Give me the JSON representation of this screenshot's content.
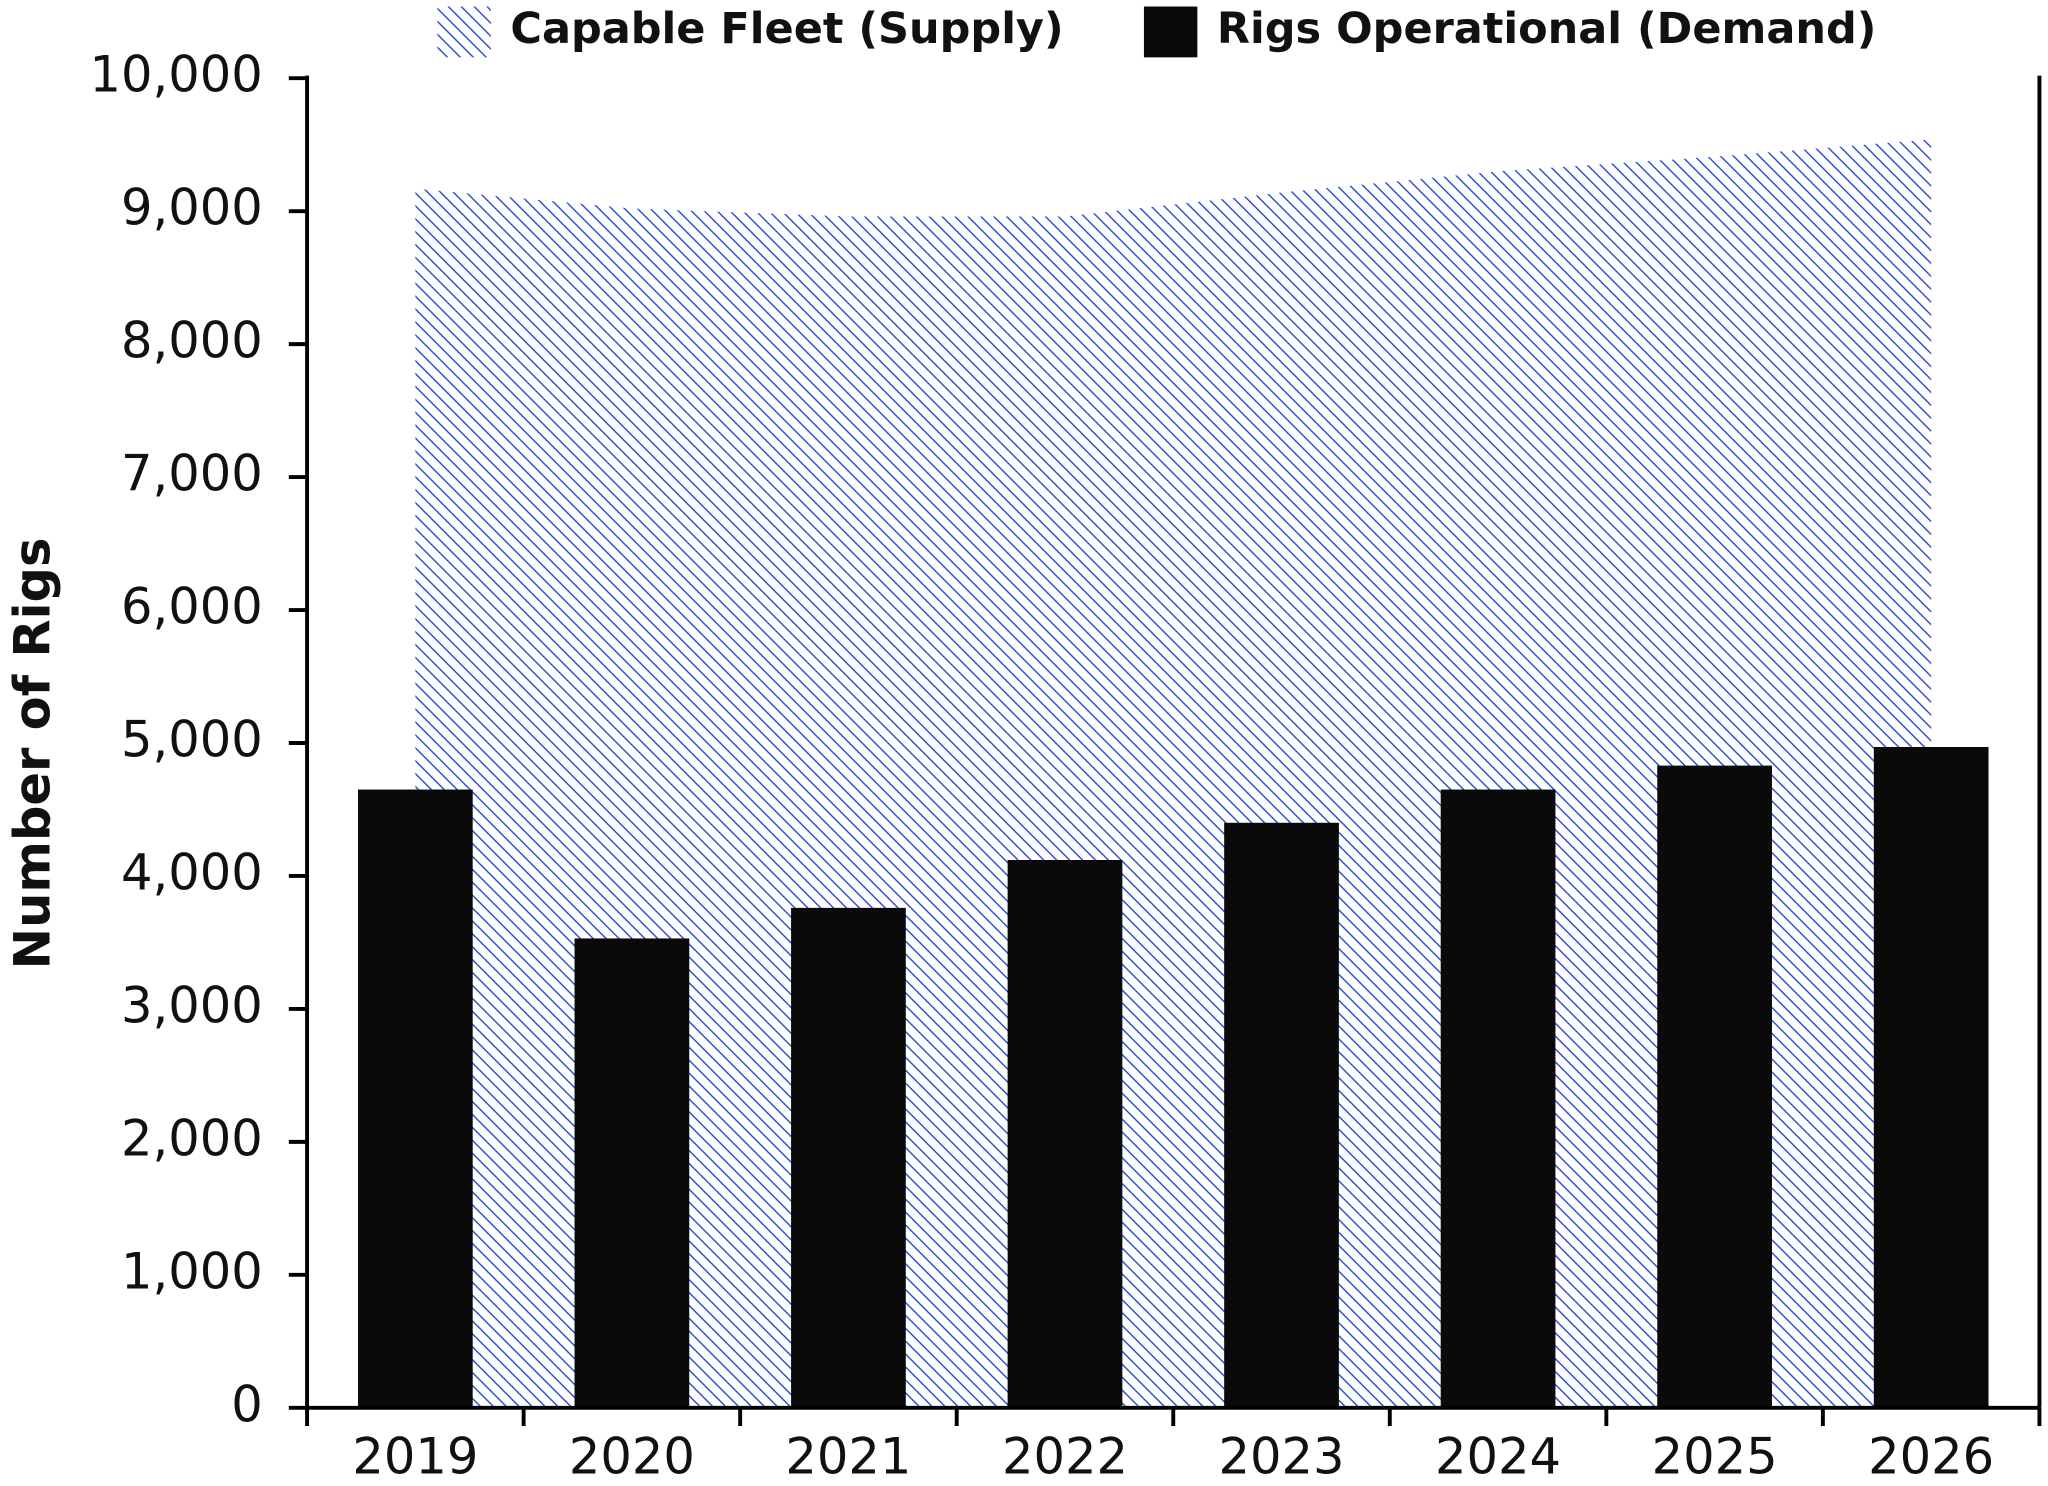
{
  "chart_data": {
    "type": "bar",
    "y_label": "Number of Rigs",
    "categories": [
      "2019",
      "2020",
      "2021",
      "2022",
      "2023",
      "2024",
      "2025",
      "2026"
    ],
    "series": [
      {
        "name": "Capable Fleet (Supply)",
        "type": "area",
        "color": "#2b4fd8",
        "values": [
          9170,
          9020,
          8960,
          8960,
          9140,
          9300,
          9410,
          9540
        ]
      },
      {
        "name": "Rigs Operational (Demand)",
        "type": "bar",
        "color": "#0a0a0a",
        "values": [
          4650,
          3530,
          3760,
          4120,
          4400,
          4650,
          4830,
          4970
        ]
      }
    ],
    "ylim": [
      0,
      10000
    ],
    "yticks": [
      0,
      {
        "value": 1000,
        "label": "1,000"
      },
      {
        "value": 2000,
        "label": "2,000"
      },
      {
        "value": 3000,
        "label": "3,000"
      },
      {
        "value": 4000,
        "label": "4,000"
      },
      {
        "value": 5000,
        "label": "5,000"
      },
      {
        "value": 6000,
        "label": "6,000"
      },
      {
        "value": 7000,
        "label": "7,000"
      },
      {
        "value": 8000,
        "label": "8,000"
      },
      {
        "value": 9000,
        "label": "9,000"
      },
      {
        "value": 10000,
        "label": "10,000"
      }
    ],
    "grid": false
  }
}
